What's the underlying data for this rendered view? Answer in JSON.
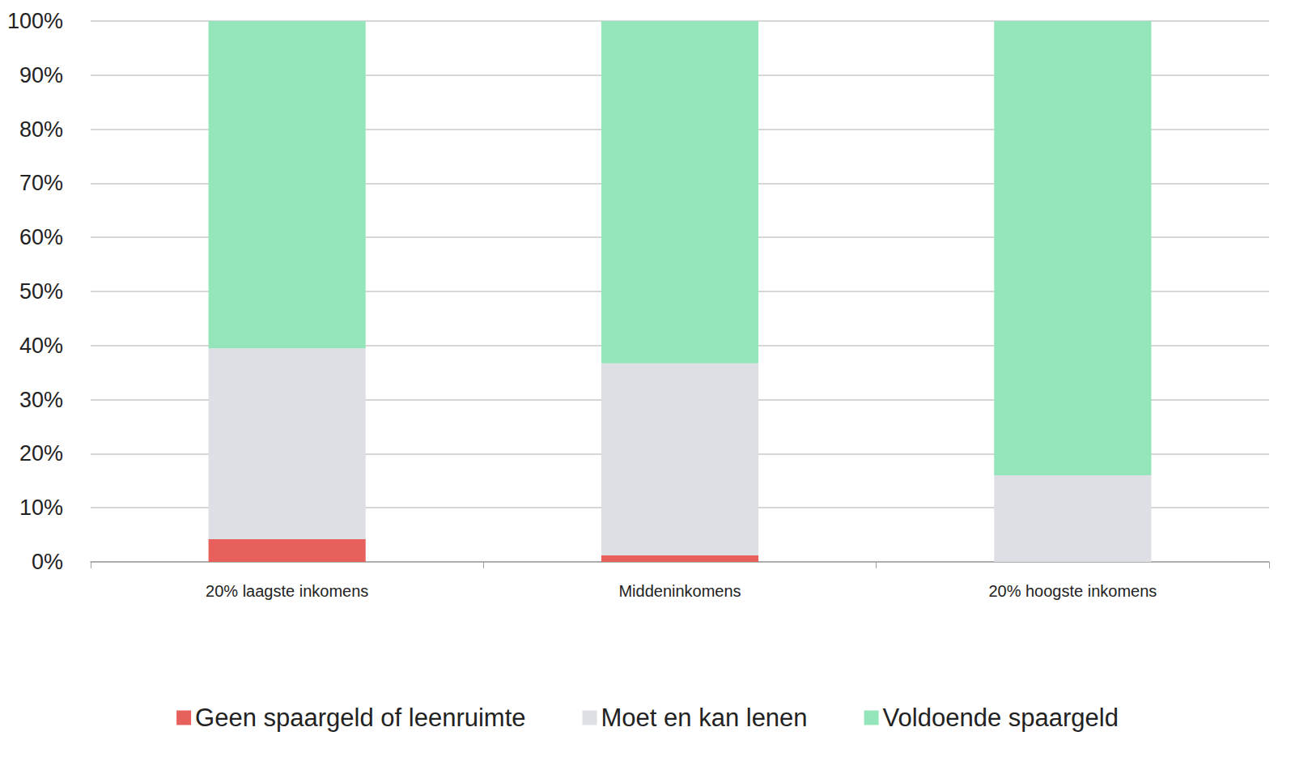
{
  "chart_data": {
    "type": "bar",
    "stacked": true,
    "grid": true,
    "legend": "bottom",
    "categories": [
      "20% laagste inkomens",
      "Middeninkomens",
      "20% hoogste inkomens"
    ],
    "series": [
      {
        "name": "Geen spaargeld of leenruimte",
        "color": "#e8605c",
        "values": [
          4.2,
          1.2,
          0
        ]
      },
      {
        "name": "Moet en kan lenen",
        "color": "#dedfe4",
        "values": [
          35.3,
          35.5,
          16.0
        ]
      },
      {
        "name": "Voldoende spaargeld",
        "color": "#94e5b9",
        "values": [
          60.5,
          63.3,
          84.0
        ]
      }
    ],
    "ylim": [
      0,
      100
    ],
    "yticks": [
      {
        "value": 0,
        "label": "0%"
      },
      {
        "value": 10,
        "label": "10%"
      },
      {
        "value": 20,
        "label": "20%"
      },
      {
        "value": 30,
        "label": "30%"
      },
      {
        "value": 40,
        "label": "40%"
      },
      {
        "value": 50,
        "label": "50%"
      },
      {
        "value": 60,
        "label": "60%"
      },
      {
        "value": 70,
        "label": "70%"
      },
      {
        "value": 80,
        "label": "80%"
      },
      {
        "value": 90,
        "label": "90%"
      },
      {
        "value": 100,
        "label": "100%"
      }
    ]
  }
}
